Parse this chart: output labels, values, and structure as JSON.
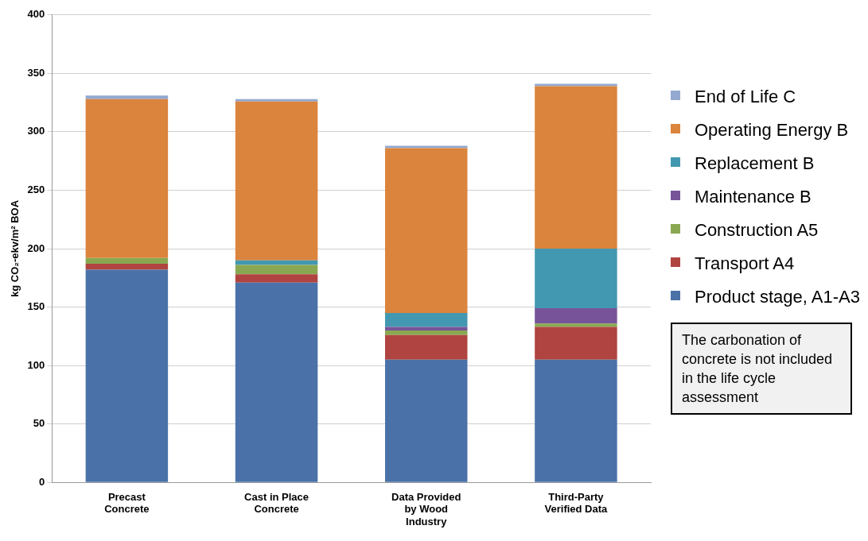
{
  "chart_data": {
    "type": "bar",
    "stacked": true,
    "ylabel": "kg CO₂-ekv/m² BOA",
    "categories": [
      "Precast Concrete",
      "Cast in Place Concrete",
      "Data Provided by Wood Industry",
      "Third-Party Verified Data"
    ],
    "series": [
      {
        "name": "Product stage, A1-A3",
        "color": "#4a72a8",
        "values": [
          182,
          171,
          105,
          105
        ]
      },
      {
        "name": "Transport A4",
        "color": "#b04440",
        "values": [
          5,
          7,
          21,
          28
        ]
      },
      {
        "name": "Construction A5",
        "color": "#8aa852",
        "values": [
          5,
          8,
          4,
          3
        ]
      },
      {
        "name": "Maintenance B",
        "color": "#77549a",
        "values": [
          0,
          0,
          3,
          13
        ]
      },
      {
        "name": "Replacement B",
        "color": "#4298b0",
        "values": [
          0,
          4,
          12,
          51
        ]
      },
      {
        "name": "Operating Energy B",
        "color": "#db843d",
        "values": [
          136,
          136,
          141,
          139
        ]
      },
      {
        "name": "End of Life C",
        "color": "#93a9cf",
        "values": [
          3,
          2,
          2,
          2
        ]
      }
    ],
    "ylim": [
      0,
      400
    ],
    "yticks": [
      0,
      50,
      100,
      150,
      200,
      250,
      300,
      350,
      400
    ],
    "grid": "y",
    "legend": "right",
    "annotations": [
      "The carbonation of concrete is not included in the life cycle assessment"
    ]
  }
}
